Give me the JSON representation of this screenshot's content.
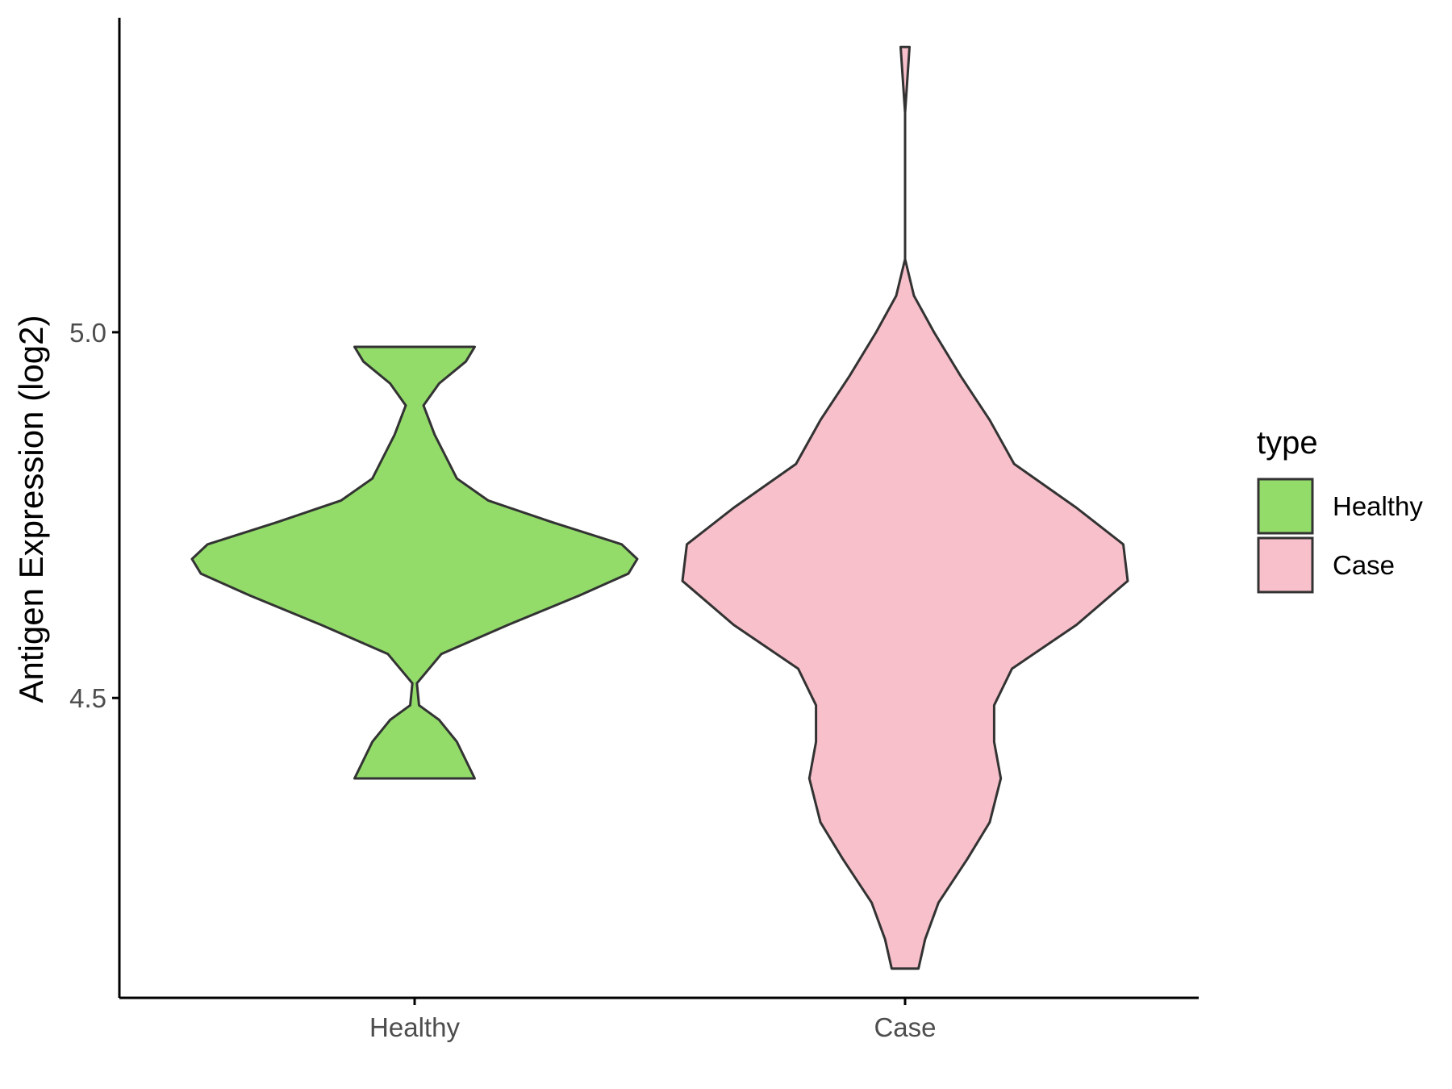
{
  "chart_data": {
    "type": "violin",
    "title": "",
    "xlabel": "",
    "ylabel": "Antigen Expression (log2)",
    "ylim": [
      4.09,
      5.43
    ],
    "yticks": [
      4.5,
      5.0
    ],
    "ytick_labels": [
      "4.5",
      "5.0"
    ],
    "categories": [
      "Healthy",
      "Case"
    ],
    "grid": false,
    "legend": {
      "title": "type",
      "position": "right",
      "entries": [
        {
          "label": "Healthy",
          "color": "#93dc6a"
        },
        {
          "label": "Case",
          "color": "#f8c0cb"
        }
      ]
    },
    "series": [
      {
        "name": "Healthy",
        "category": "Healthy",
        "color": "#93dc6a",
        "min": 4.39,
        "max": 4.98,
        "density_profile": [
          [
            4.39,
            0.27
          ],
          [
            4.44,
            0.19
          ],
          [
            4.47,
            0.11
          ],
          [
            4.49,
            0.02
          ],
          [
            4.52,
            0.01
          ],
          [
            4.56,
            0.12
          ],
          [
            4.6,
            0.42
          ],
          [
            4.64,
            0.74
          ],
          [
            4.67,
            0.96
          ],
          [
            4.69,
            1.0
          ],
          [
            4.71,
            0.93
          ],
          [
            4.74,
            0.62
          ],
          [
            4.77,
            0.33
          ],
          [
            4.8,
            0.19
          ],
          [
            4.83,
            0.14
          ],
          [
            4.86,
            0.09
          ],
          [
            4.9,
            0.04
          ],
          [
            4.93,
            0.11
          ],
          [
            4.96,
            0.23
          ],
          [
            4.98,
            0.27
          ]
        ]
      },
      {
        "name": "Case",
        "category": "Case",
        "color": "#f8c0cb",
        "min": 4.13,
        "max": 5.39,
        "density_profile": [
          [
            4.13,
            0.06
          ],
          [
            4.17,
            0.09
          ],
          [
            4.22,
            0.15
          ],
          [
            4.28,
            0.28
          ],
          [
            4.33,
            0.38
          ],
          [
            4.39,
            0.43
          ],
          [
            4.44,
            0.4
          ],
          [
            4.49,
            0.4
          ],
          [
            4.54,
            0.48
          ],
          [
            4.6,
            0.77
          ],
          [
            4.66,
            1.0
          ],
          [
            4.71,
            0.98
          ],
          [
            4.76,
            0.77
          ],
          [
            4.82,
            0.49
          ],
          [
            4.88,
            0.38
          ],
          [
            4.94,
            0.25
          ],
          [
            5.0,
            0.13
          ],
          [
            5.05,
            0.04
          ],
          [
            5.1,
            0.0
          ],
          [
            5.2,
            0.0
          ],
          [
            5.3,
            0.0
          ],
          [
            5.39,
            0.02
          ]
        ]
      }
    ]
  }
}
